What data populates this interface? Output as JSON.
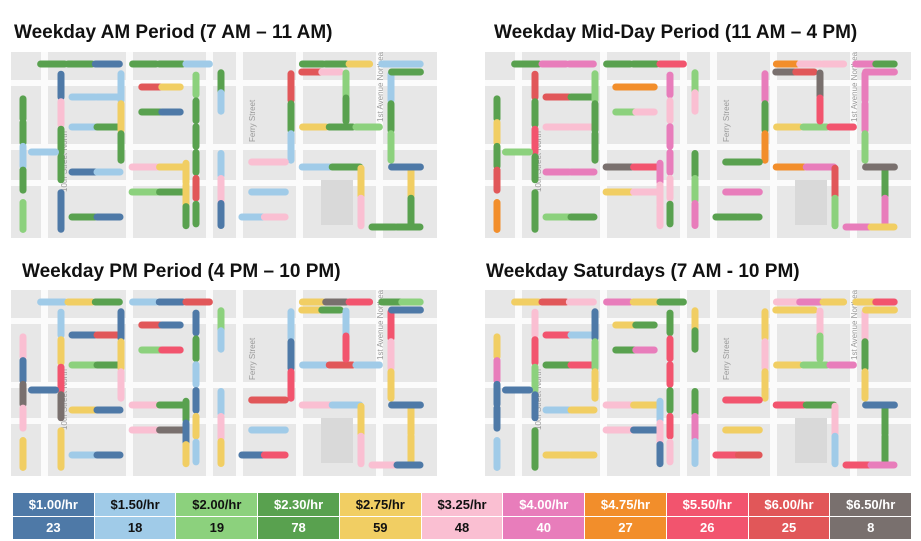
{
  "titles": {
    "am": "Weekday AM Period (7 AM – 11 AM)",
    "midday": "Weekday Mid-Day Period (11 AM – 4 PM)",
    "pm": "Weekday PM Period (4 PM – 10 PM)",
    "sat": "Weekday Saturdays (7 AM - 10 PM)"
  },
  "map_labels": {
    "street_west": "10th Street North",
    "street_mid": "Ferry Street",
    "street_east": "1st Avenue Northeast"
  },
  "legend": [
    {
      "label": "$1.00/hr",
      "count": "23",
      "color": "#4e79a7",
      "text_color": "#ffffff"
    },
    {
      "label": "$1.50/hr",
      "count": "18",
      "color": "#a0cbe8",
      "text_color": "#111111"
    },
    {
      "label": "$2.00/hr",
      "count": "19",
      "color": "#8cd17d",
      "text_color": "#111111"
    },
    {
      "label": "$2.30/hr",
      "count": "78",
      "color": "#59a14f",
      "text_color": "#ffffff"
    },
    {
      "label": "$2.75/hr",
      "count": "59",
      "color": "#f1ce63",
      "text_color": "#111111"
    },
    {
      "label": "$3.25/hr",
      "count": "48",
      "color": "#fabfd2",
      "text_color": "#111111"
    },
    {
      "label": "$4.00/hr",
      "count": "40",
      "color": "#e87dbb",
      "text_color": "#ffffff"
    },
    {
      "label": "$4.75/hr",
      "count": "27",
      "color": "#f28e2b",
      "text_color": "#ffffff"
    },
    {
      "label": "$5.50/hr",
      "count": "26",
      "color": "#f2546e",
      "text_color": "#ffffff"
    },
    {
      "label": "$6.00/hr",
      "count": "25",
      "color": "#e15759",
      "text_color": "#ffffff"
    },
    {
      "label": "$6.50/hr",
      "count": "8",
      "color": "#79706e",
      "text_color": "#ffffff"
    }
  ]
}
